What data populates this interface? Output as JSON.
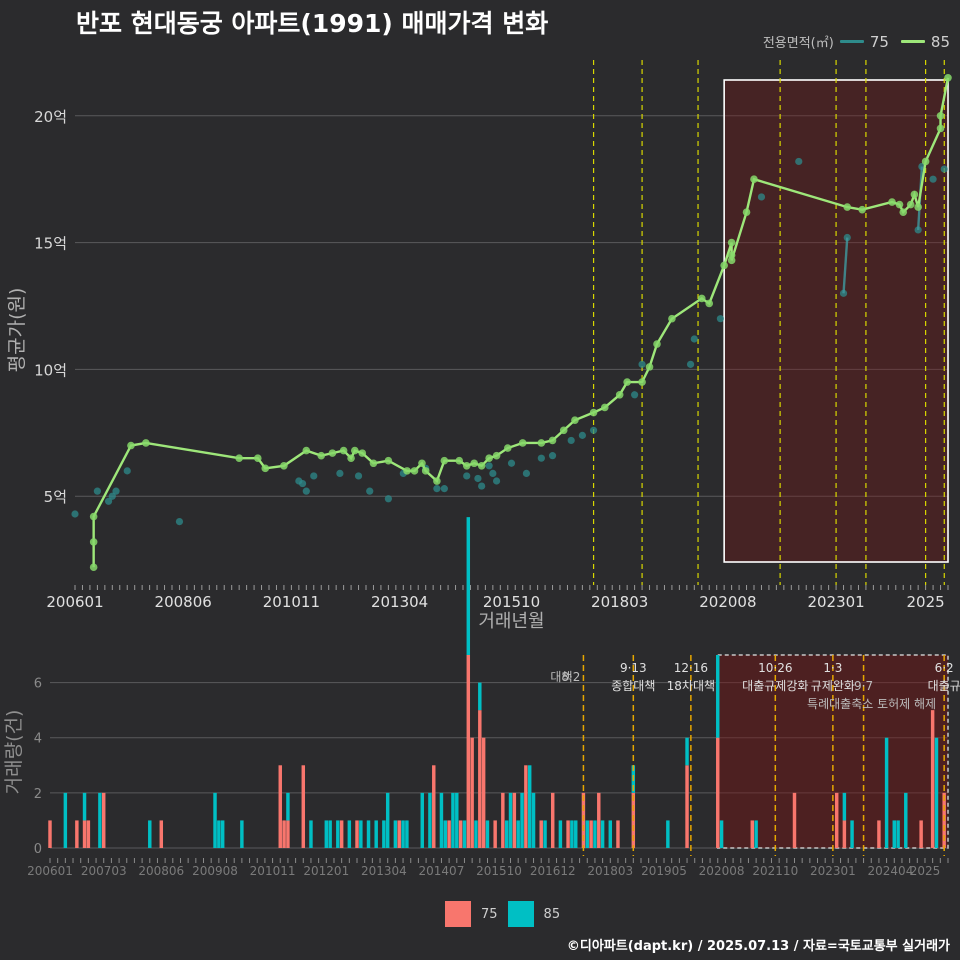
{
  "title": "반포 현대동궁 아파트(1991) 매매가격 변화",
  "legend": {
    "title": "전용면적(㎡)",
    "items": [
      {
        "label": "75",
        "line_color": "#2e8b8b",
        "bar_color": "#f8766d"
      },
      {
        "label": "85",
        "line_color": "#9ee77a",
        "bar_color": "#00bfc4"
      }
    ]
  },
  "footer": "©디아파트(dapt.kr) / 2025.07.13 / 자료=국토교통부 실거래가",
  "chart_data": [
    {
      "type": "line",
      "title": "반포 현대동궁 아파트(1991) 매매가격 변화",
      "xlabel": "거래년월",
      "ylabel": "평균가(원)",
      "x_range": [
        "2006-01",
        "2025-07"
      ],
      "ylim": [
        1.5,
        22.2
      ],
      "x_ticks": [
        "200601",
        "200806",
        "201011",
        "201304",
        "201510",
        "201803",
        "202008",
        "202301",
        "2025"
      ],
      "y_ticks": [
        {
          "value": 5,
          "label": "5억"
        },
        {
          "value": 10,
          "label": "10억"
        },
        {
          "value": 15,
          "label": "15억"
        },
        {
          "value": 20,
          "label": "20억"
        }
      ],
      "highlight_range": [
        "2020-07",
        "2025-07"
      ],
      "policy_lines": [
        "2017-08",
        "2018-09",
        "2019-12",
        "2021-10",
        "2023-01",
        "2023-09",
        "2025-01",
        "2025-06"
      ],
      "series": [
        {
          "name": "75",
          "points": [
            [
              "2006-01",
              4.3
            ],
            [
              "2006-07",
              5.2
            ],
            [
              "2006-10",
              4.8
            ],
            [
              "2006-11",
              5.0
            ],
            [
              "2006-12",
              5.2
            ],
            [
              "2007-03",
              6.0
            ],
            [
              "2008-05",
              4.0
            ],
            [
              "2011-01",
              5.6
            ],
            [
              "2011-02",
              5.5
            ],
            [
              "2011-03",
              5.2
            ],
            [
              "2011-05",
              5.8
            ],
            [
              "2011-12",
              5.9
            ],
            [
              "2012-05",
              5.8
            ],
            [
              "2012-08",
              5.2
            ],
            [
              "2013-01",
              4.9
            ],
            [
              "2013-05",
              5.9
            ],
            [
              "2013-11",
              6.1
            ],
            [
              "2014-02",
              5.3
            ],
            [
              "2014-04",
              5.3
            ],
            [
              "2014-10",
              5.8
            ],
            [
              "2015-01",
              5.7
            ],
            [
              "2015-02",
              5.4
            ],
            [
              "2015-04",
              6.2
            ],
            [
              "2015-05",
              5.9
            ],
            [
              "2015-06",
              5.6
            ],
            [
              "2015-10",
              6.3
            ],
            [
              "2016-02",
              5.9
            ],
            [
              "2016-06",
              6.5
            ],
            [
              "2016-09",
              6.6
            ],
            [
              "2017-02",
              7.2
            ],
            [
              "2017-05",
              7.4
            ],
            [
              "2017-08",
              7.6
            ],
            [
              "2018-07",
              9.0
            ],
            [
              "2018-09",
              10.2
            ],
            [
              "2019-10",
              10.2
            ],
            [
              "2019-11",
              11.2
            ],
            [
              "2020-06",
              12.0
            ],
            [
              "2021-05",
              16.8
            ],
            [
              "2022-03",
              18.2
            ],
            [
              "2023-03",
              13.0
            ],
            [
              "2023-04",
              15.2
            ],
            [
              "2024-11",
              15.5
            ],
            [
              "2024-12",
              18.0
            ],
            [
              "2025-03",
              17.5
            ],
            [
              "2025-06",
              17.9
            ]
          ],
          "line_segments": [
            [
              [
                "2023-03",
                13.0
              ],
              [
                "2023-04",
                15.2
              ]
            ],
            [
              [
                "2024-11",
                15.5
              ],
              [
                "2024-12",
                18.0
              ]
            ]
          ]
        },
        {
          "name": "85",
          "points": [
            [
              "2006-06",
              3.2
            ],
            [
              "2006-06",
              2.2
            ],
            [
              "2006-06",
              4.2
            ],
            [
              "2007-04",
              7.0
            ],
            [
              "2007-08",
              7.1
            ],
            [
              "2009-09",
              6.5
            ],
            [
              "2010-02",
              6.5
            ],
            [
              "2010-04",
              6.1
            ],
            [
              "2010-09",
              6.2
            ],
            [
              "2011-03",
              6.8
            ],
            [
              "2011-07",
              6.6
            ],
            [
              "2011-10",
              6.7
            ],
            [
              "2012-01",
              6.8
            ],
            [
              "2012-03",
              6.5
            ],
            [
              "2012-04",
              6.8
            ],
            [
              "2012-06",
              6.7
            ],
            [
              "2012-09",
              6.3
            ],
            [
              "2013-01",
              6.4
            ],
            [
              "2013-06",
              6.0
            ],
            [
              "2013-08",
              6.0
            ],
            [
              "2013-10",
              6.3
            ],
            [
              "2013-11",
              6.0
            ],
            [
              "2014-02",
              5.6
            ],
            [
              "2014-04",
              6.4
            ],
            [
              "2014-08",
              6.4
            ],
            [
              "2014-10",
              6.2
            ],
            [
              "2014-12",
              6.3
            ],
            [
              "2015-02",
              6.2
            ],
            [
              "2015-04",
              6.5
            ],
            [
              "2015-06",
              6.6
            ],
            [
              "2015-09",
              6.9
            ],
            [
              "2016-01",
              7.1
            ],
            [
              "2016-06",
              7.1
            ],
            [
              "2016-09",
              7.2
            ],
            [
              "2016-12",
              7.6
            ],
            [
              "2017-03",
              8.0
            ],
            [
              "2017-08",
              8.3
            ],
            [
              "2017-11",
              8.5
            ],
            [
              "2018-03",
              9.0
            ],
            [
              "2018-05",
              9.5
            ],
            [
              "2018-09",
              9.5
            ],
            [
              "2018-11",
              10.1
            ],
            [
              "2019-01",
              11.0
            ],
            [
              "2019-05",
              12.0
            ],
            [
              "2020-01",
              12.8
            ],
            [
              "2020-03",
              12.6
            ],
            [
              "2020-07",
              14.1
            ],
            [
              "2020-09",
              15.0
            ],
            [
              "2020-09",
              14.5
            ],
            [
              "2020-09",
              14.3
            ],
            [
              "2021-01",
              16.2
            ],
            [
              "2021-03",
              17.5
            ],
            [
              "2023-04",
              16.4
            ],
            [
              "2023-08",
              16.3
            ],
            [
              "2024-04",
              16.6
            ],
            [
              "2024-06",
              16.5
            ],
            [
              "2024-07",
              16.2
            ],
            [
              "2024-09",
              16.5
            ],
            [
              "2024-10",
              16.9
            ],
            [
              "2024-11",
              16.4
            ],
            [
              "2025-01",
              18.2
            ],
            [
              "2025-05",
              19.5
            ],
            [
              "2025-05",
              20.0
            ],
            [
              "2025-07",
              21.5
            ]
          ]
        }
      ]
    },
    {
      "type": "bar",
      "xlabel": "",
      "ylabel": "거래량(건)",
      "ylim": [
        0,
        7
      ],
      "y_ticks": [
        0,
        2,
        4,
        6
      ],
      "x_ticks": [
        "200601",
        "200703",
        "200806",
        "200908",
        "201011",
        "201201",
        "201304",
        "201407",
        "201510",
        "201612",
        "201803",
        "201905",
        "202008",
        "202110",
        "202301",
        "202404",
        "2025"
      ],
      "highlight_range": [
        "2020-07",
        "2025-07"
      ],
      "policy_lines": [
        {
          "month": "2017-08",
          "date": "8·2",
          "label": "대책"
        },
        {
          "month": "2018-09",
          "date": "9·13",
          "label": "종합대책"
        },
        {
          "month": "2019-12",
          "date": "12·16",
          "label": "18차대책"
        },
        {
          "month": "2021-10",
          "date": "10·26",
          "label": "대출규제강화"
        },
        {
          "month": "2023-01",
          "date": "1·3",
          "label": "규제완화"
        },
        {
          "month": "2023-09",
          "date": "9·7",
          "label": "특례대출축소 토허제 해제"
        },
        {
          "month": "2025-06",
          "date": "6·2",
          "label": "대출규"
        }
      ],
      "series": [
        {
          "name": "75",
          "values": [
            [
              "2006-01",
              1
            ],
            [
              "2006-08",
              1
            ],
            [
              "2006-10",
              1
            ],
            [
              "2006-11",
              1
            ],
            [
              "2007-03",
              2
            ],
            [
              "2008-06",
              1
            ],
            [
              "2011-01",
              3
            ],
            [
              "2011-02",
              1
            ],
            [
              "2011-03",
              1
            ],
            [
              "2011-07",
              3
            ],
            [
              "2012-05",
              1
            ],
            [
              "2012-09",
              1
            ],
            [
              "2013-08",
              1
            ],
            [
              "2014-05",
              3
            ],
            [
              "2014-09",
              1
            ],
            [
              "2014-12",
              1
            ],
            [
              "2015-02",
              7
            ],
            [
              "2015-03",
              4
            ],
            [
              "2015-05",
              5
            ],
            [
              "2015-06",
              4
            ],
            [
              "2015-09",
              1
            ],
            [
              "2015-11",
              2
            ],
            [
              "2016-02",
              2
            ],
            [
              "2016-05",
              3
            ],
            [
              "2016-09",
              1
            ],
            [
              "2016-12",
              2
            ],
            [
              "2017-04",
              1
            ],
            [
              "2017-08",
              2
            ],
            [
              "2017-10",
              1
            ],
            [
              "2017-12",
              2
            ],
            [
              "2018-05",
              1
            ],
            [
              "2018-09",
              2
            ],
            [
              "2019-11",
              3
            ],
            [
              "2020-07",
              4
            ],
            [
              "2021-04",
              1
            ],
            [
              "2022-03",
              2
            ],
            [
              "2023-02",
              2
            ],
            [
              "2023-04",
              1
            ],
            [
              "2024-01",
              1
            ],
            [
              "2024-12",
              1
            ],
            [
              "2025-03",
              5
            ],
            [
              "2025-06",
              2
            ]
          ]
        },
        {
          "name": "85",
          "values": [
            [
              "2006-05",
              2
            ],
            [
              "2006-10",
              1
            ],
            [
              "2007-02",
              2
            ],
            [
              "2008-03",
              1
            ],
            [
              "2009-08",
              2
            ],
            [
              "2009-09",
              1
            ],
            [
              "2009-10",
              1
            ],
            [
              "2010-03",
              1
            ],
            [
              "2011-03",
              1
            ],
            [
              "2011-09",
              1
            ],
            [
              "2012-01",
              1
            ],
            [
              "2012-02",
              1
            ],
            [
              "2012-04",
              1
            ],
            [
              "2012-07",
              1
            ],
            [
              "2012-10",
              1
            ],
            [
              "2012-12",
              1
            ],
            [
              "2013-02",
              1
            ],
            [
              "2013-04",
              1
            ],
            [
              "2013-05",
              2
            ],
            [
              "2013-07",
              1
            ],
            [
              "2013-09",
              1
            ],
            [
              "2013-10",
              1
            ],
            [
              "2014-02",
              2
            ],
            [
              "2014-04",
              2
            ],
            [
              "2014-07",
              2
            ],
            [
              "2014-08",
              1
            ],
            [
              "2014-10",
              2
            ],
            [
              "2014-11",
              2
            ],
            [
              "2015-01",
              1
            ],
            [
              "2015-02",
              5
            ],
            [
              "2015-04",
              1
            ],
            [
              "2015-05",
              1
            ],
            [
              "2015-07",
              1
            ],
            [
              "2015-12",
              1
            ],
            [
              "2016-01",
              2
            ],
            [
              "2016-03",
              1
            ],
            [
              "2016-04",
              2
            ],
            [
              "2016-06",
              3
            ],
            [
              "2016-07",
              2
            ],
            [
              "2016-10",
              1
            ],
            [
              "2017-02",
              1
            ],
            [
              "2017-05",
              1
            ],
            [
              "2017-06",
              1
            ],
            [
              "2017-09",
              1
            ],
            [
              "2017-11",
              1
            ],
            [
              "2018-01",
              1
            ],
            [
              "2018-03",
              1
            ],
            [
              "2018-09",
              1
            ],
            [
              "2019-06",
              1
            ],
            [
              "2019-11",
              1
            ],
            [
              "2020-07",
              3
            ],
            [
              "2020-08",
              1
            ],
            [
              "2021-05",
              1
            ],
            [
              "2023-04",
              1
            ],
            [
              "2023-06",
              1
            ],
            [
              "2024-03",
              4
            ],
            [
              "2024-05",
              1
            ],
            [
              "2024-06",
              1
            ],
            [
              "2024-08",
              2
            ],
            [
              "2025-04",
              4
            ]
          ]
        }
      ]
    }
  ]
}
